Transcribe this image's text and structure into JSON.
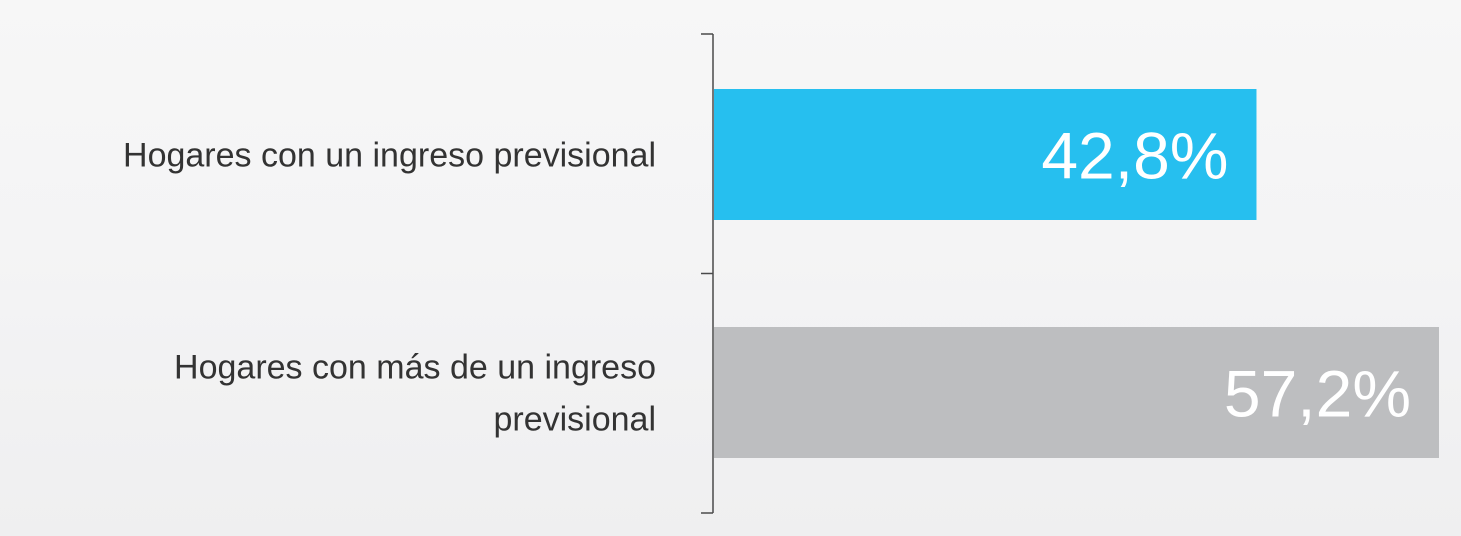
{
  "chart_data": {
    "type": "bar",
    "orientation": "horizontal",
    "categories": [
      [
        "Hogares con un ingreso previsional"
      ],
      [
        "Hogares con más de un ingreso",
        "previsional"
      ]
    ],
    "values": [
      42.8,
      57.2
    ],
    "value_labels": [
      "42,8%",
      "57,2%"
    ],
    "bar_colors": [
      "#26bfef",
      "#bdbec0"
    ],
    "xlim": [
      0,
      57.2
    ],
    "title": "",
    "xlabel": "",
    "ylabel": "",
    "grid": false,
    "legend": "none"
  }
}
